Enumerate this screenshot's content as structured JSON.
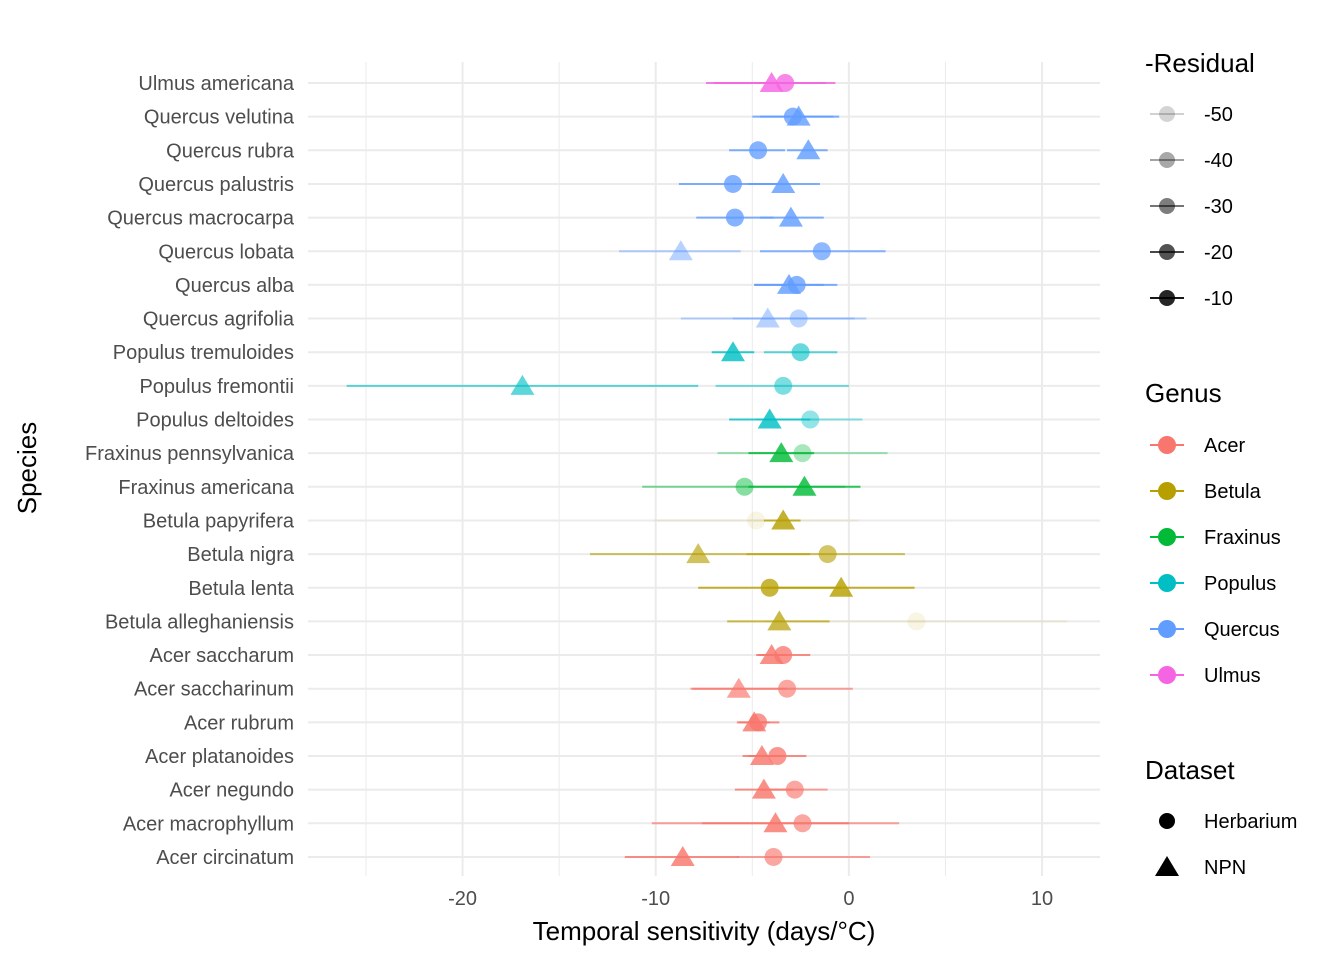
{
  "chart_data": {
    "type": "scatter",
    "subtype": "dot-and-whisker",
    "xlabel": "Temporal sensitivity (days/°C)",
    "ylabel": "Species",
    "xlim": [
      -28,
      13
    ],
    "x_ticks": [
      -20,
      -10,
      0,
      10
    ],
    "x_tick_labels": [
      "-20",
      "-10",
      "0",
      "10"
    ],
    "grid": true,
    "legend_position": "right",
    "genus_colors": {
      "Acer": "#F8766D",
      "Betula": "#B79F00",
      "Fraxinus": "#00BA38",
      "Populus": "#00BFC4",
      "Quercus": "#619CFF",
      "Ulmus": "#F564E3"
    },
    "species": [
      {
        "name": "Ulmus americana",
        "genus": "Ulmus",
        "herbarium": {
          "x": -3.3,
          "lo": -7.4,
          "hi": -1.2,
          "residual": -15
        },
        "npn": {
          "x": -4.0,
          "lo": -7.0,
          "hi": -0.7,
          "residual": -15
        }
      },
      {
        "name": "Quercus velutina",
        "genus": "Quercus",
        "herbarium": {
          "x": -2.9,
          "lo": -5.0,
          "hi": -0.8,
          "residual": -15
        },
        "npn": {
          "x": -2.6,
          "lo": -4.6,
          "hi": -0.5,
          "residual": -15
        }
      },
      {
        "name": "Quercus rubra",
        "genus": "Quercus",
        "herbarium": {
          "x": -4.7,
          "lo": -6.2,
          "hi": -3.3,
          "residual": -15
        },
        "npn": {
          "x": -2.1,
          "lo": -3.2,
          "hi": -1.1,
          "residual": -15
        }
      },
      {
        "name": "Quercus palustris",
        "genus": "Quercus",
        "herbarium": {
          "x": -6.0,
          "lo": -8.8,
          "hi": -3.2,
          "residual": -15
        },
        "npn": {
          "x": -3.4,
          "lo": -5.2,
          "hi": -1.5,
          "residual": -15
        }
      },
      {
        "name": "Quercus macrocarpa",
        "genus": "Quercus",
        "herbarium": {
          "x": -5.9,
          "lo": -7.9,
          "hi": -3.9,
          "residual": -15
        },
        "npn": {
          "x": -3.0,
          "lo": -4.6,
          "hi": -1.3,
          "residual": -15
        }
      },
      {
        "name": "Quercus lobata",
        "genus": "Quercus",
        "herbarium": {
          "x": -1.4,
          "lo": -4.6,
          "hi": 1.9,
          "residual": -18
        },
        "npn": {
          "x": -8.7,
          "lo": -11.9,
          "hi": -5.6,
          "residual": -35
        }
      },
      {
        "name": "Quercus alba",
        "genus": "Quercus",
        "herbarium": {
          "x": -2.7,
          "lo": -4.9,
          "hi": -0.6,
          "residual": -15
        },
        "npn": {
          "x": -3.1,
          "lo": -4.9,
          "hi": -1.3,
          "residual": -15
        }
      },
      {
        "name": "Quercus agrifolia",
        "genus": "Quercus",
        "herbarium": {
          "x": -2.6,
          "lo": -6.0,
          "hi": 0.9,
          "residual": -35
        },
        "npn": {
          "x": -4.2,
          "lo": -8.7,
          "hi": 0.3,
          "residual": -35
        }
      },
      {
        "name": "Populus tremuloides",
        "genus": "Populus",
        "herbarium": {
          "x": -2.5,
          "lo": -4.4,
          "hi": -0.6,
          "residual": -25
        },
        "npn": {
          "x": -6.0,
          "lo": -7.1,
          "hi": -4.9,
          "residual": -15
        }
      },
      {
        "name": "Populus fremontii",
        "genus": "Populus",
        "herbarium": {
          "x": -3.4,
          "lo": -6.9,
          "hi": 0.0,
          "residual": -30
        },
        "npn": {
          "x": -16.9,
          "lo": -26.0,
          "hi": -7.8,
          "residual": -25
        }
      },
      {
        "name": "Populus deltoides",
        "genus": "Populus",
        "herbarium": {
          "x": -2.0,
          "lo": -4.8,
          "hi": 0.7,
          "residual": -35
        },
        "npn": {
          "x": -4.1,
          "lo": -6.2,
          "hi": -2.0,
          "residual": -15
        }
      },
      {
        "name": "Fraxinus pennsylvanica",
        "genus": "Fraxinus",
        "herbarium": {
          "x": -2.4,
          "lo": -6.8,
          "hi": 2.0,
          "residual": -40
        },
        "npn": {
          "x": -3.5,
          "lo": -5.2,
          "hi": -1.8,
          "residual": -15
        }
      },
      {
        "name": "Fraxinus americana",
        "genus": "Fraxinus",
        "herbarium": {
          "x": -5.4,
          "lo": -10.7,
          "hi": -0.2,
          "residual": -32
        },
        "npn": {
          "x": -2.3,
          "lo": -5.2,
          "hi": 0.6,
          "residual": -15
        }
      },
      {
        "name": "Betula papyrifera",
        "genus": "Betula",
        "herbarium": {
          "x": -4.8,
          "lo": -10.1,
          "hi": 0.5,
          "residual": -55
        },
        "npn": {
          "x": -3.4,
          "lo": -4.4,
          "hi": -2.5,
          "residual": -15
        }
      },
      {
        "name": "Betula nigra",
        "genus": "Betula",
        "herbarium": {
          "x": -1.1,
          "lo": -5.3,
          "hi": 2.9,
          "residual": -25
        },
        "npn": {
          "x": -7.8,
          "lo": -13.4,
          "hi": -2.0,
          "residual": -25
        }
      },
      {
        "name": "Betula lenta",
        "genus": "Betula",
        "herbarium": {
          "x": -4.1,
          "lo": -7.8,
          "hi": -0.4,
          "residual": -15
        },
        "npn": {
          "x": -0.4,
          "lo": -4.3,
          "hi": 3.4,
          "residual": -15
        }
      },
      {
        "name": "Betula alleghaniensis",
        "genus": "Betula",
        "herbarium": {
          "x": 3.5,
          "lo": -4.3,
          "hi": 11.3,
          "residual": -62
        },
        "npn": {
          "x": -3.6,
          "lo": -6.3,
          "hi": -1.0,
          "residual": -20
        }
      },
      {
        "name": "Acer saccharum",
        "genus": "Acer",
        "herbarium": {
          "x": -3.4,
          "lo": -4.7,
          "hi": -2.0,
          "residual": -15
        },
        "npn": {
          "x": -4.0,
          "lo": -4.8,
          "hi": -3.2,
          "residual": -15
        }
      },
      {
        "name": "Acer saccharinum",
        "genus": "Acer",
        "herbarium": {
          "x": -3.2,
          "lo": -8.1,
          "hi": 0.2,
          "residual": -22
        },
        "npn": {
          "x": -5.7,
          "lo": -8.2,
          "hi": -3.2,
          "residual": -22
        }
      },
      {
        "name": "Acer rubrum",
        "genus": "Acer",
        "herbarium": {
          "x": -4.7,
          "lo": -5.8,
          "hi": -3.6,
          "residual": -15
        },
        "npn": {
          "x": -4.9,
          "lo": -5.7,
          "hi": -4.1,
          "residual": -15
        }
      },
      {
        "name": "Acer platanoides",
        "genus": "Acer",
        "herbarium": {
          "x": -3.7,
          "lo": -5.2,
          "hi": -2.2,
          "residual": -15
        },
        "npn": {
          "x": -4.5,
          "lo": -5.5,
          "hi": -3.4,
          "residual": -15
        }
      },
      {
        "name": "Acer negundo",
        "genus": "Acer",
        "herbarium": {
          "x": -2.8,
          "lo": -4.6,
          "hi": -1.1,
          "residual": -22
        },
        "npn": {
          "x": -4.4,
          "lo": -5.9,
          "hi": -2.9,
          "residual": -15
        }
      },
      {
        "name": "Acer macrophyllum",
        "genus": "Acer",
        "herbarium": {
          "x": -2.4,
          "lo": -10.2,
          "hi": 2.6,
          "residual": -22
        },
        "npn": {
          "x": -3.8,
          "lo": -7.6,
          "hi": 0.0,
          "residual": -15
        }
      },
      {
        "name": "Acer circinatum",
        "genus": "Acer",
        "herbarium": {
          "x": -3.9,
          "lo": -5.8,
          "hi": 1.1,
          "residual": -22
        },
        "npn": {
          "x": -8.6,
          "lo": -11.6,
          "hi": -5.7,
          "residual": -15
        }
      }
    ],
    "legends": {
      "residual": {
        "title": "-Residual",
        "items": [
          {
            "label": "-50",
            "value": -50
          },
          {
            "label": "-40",
            "value": -40
          },
          {
            "label": "-30",
            "value": -30
          },
          {
            "label": "-20",
            "value": -20
          },
          {
            "label": "-10",
            "value": -10
          }
        ]
      },
      "genus": {
        "title": "Genus",
        "items": [
          "Acer",
          "Betula",
          "Fraxinus",
          "Populus",
          "Quercus",
          "Ulmus"
        ]
      },
      "dataset": {
        "title": "Dataset",
        "items": [
          {
            "label": "Herbarium",
            "shape": "circle"
          },
          {
            "label": "NPN",
            "shape": "triangle"
          }
        ]
      }
    }
  }
}
